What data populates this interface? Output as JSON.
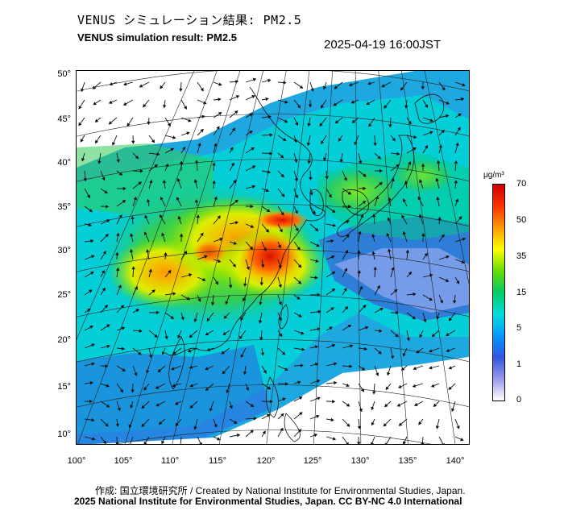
{
  "header": {
    "title_jp": "VENUS シミュレーション結果: PM2.5",
    "title_en": "VENUS simulation result: PM2.5",
    "timestamp": "2025-04-19 16:00JST"
  },
  "map": {
    "lat_labels": [
      "50°",
      "45°",
      "40°",
      "35°",
      "30°",
      "25°",
      "20°",
      "15°",
      "10°"
    ],
    "lon_labels": [
      "100°",
      "105°",
      "110°",
      "115°",
      "120°",
      "125°",
      "130°",
      "135°",
      "140°"
    ],
    "lat_range": [
      10,
      50
    ],
    "lon_range": [
      100,
      140
    ]
  },
  "legend": {
    "unit": "μg/m³",
    "labels": [
      "70",
      "50",
      "35",
      "15",
      "5",
      "1",
      "0"
    ],
    "colors": [
      "#cc0000",
      "#ff3300",
      "#ff9900",
      "#ffff00",
      "#66dd00",
      "#00cc66",
      "#00dddd",
      "#0099ff",
      "#3355dd",
      "#9999ee",
      "#ffffff"
    ]
  },
  "footer": {
    "credit_jp": "作成: 国立環境研究所 / Created by National Institute for Environmental Studies, Japan.",
    "credit_en": "2025 National Institute for Environmental Studies, Japan. CC BY-NC 4.0 International"
  }
}
